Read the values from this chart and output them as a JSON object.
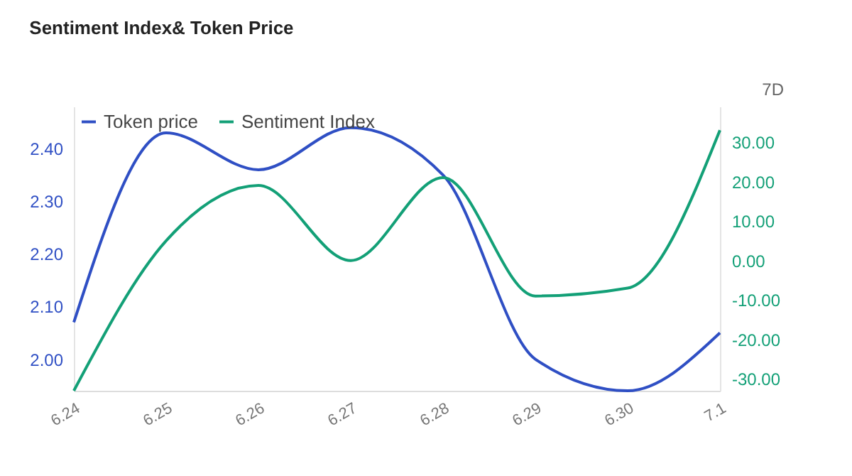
{
  "chart_data": {
    "type": "line",
    "title": "Sentiment Index& Token Price",
    "categories": [
      "6.24",
      "6.25",
      "6.26",
      "6.27",
      "6.28",
      "6.29",
      "6.30",
      "7.1"
    ],
    "series": [
      {
        "name": "Token price",
        "color": "#2f4fc4",
        "values": [
          2.07,
          2.43,
          2.36,
          2.44,
          2.35,
          2.0,
          1.94,
          2.05
        ]
      },
      {
        "name": "Sentiment Index",
        "color": "#13a077",
        "axis": "y2",
        "values": [
          -33,
          5,
          19,
          0,
          21,
          -9,
          -7,
          33
        ]
      }
    ],
    "ylim": [
      1.94,
      2.48
    ],
    "yticks": [
      {
        "value": 2.0,
        "label": "2.00"
      },
      {
        "value": 2.1,
        "label": "2.10"
      },
      {
        "value": 2.2,
        "label": "2.20"
      },
      {
        "value": 2.3,
        "label": "2.30"
      },
      {
        "value": 2.4,
        "label": "2.40"
      }
    ],
    "y2lim": [
      -33,
      39
    ],
    "y2ticks": [
      {
        "value": -30,
        "label": "-30.00"
      },
      {
        "value": -20,
        "label": "-20.00"
      },
      {
        "value": -10,
        "label": "-10.00"
      },
      {
        "value": 0,
        "label": "0.00"
      },
      {
        "value": 10,
        "label": "10.00"
      },
      {
        "value": 20,
        "label": "20.00"
      },
      {
        "value": 30,
        "label": "30.00"
      }
    ],
    "grid": false,
    "legend": "top left",
    "marker": "none",
    "line_style": "solid",
    "annotations": [
      "7D"
    ]
  }
}
